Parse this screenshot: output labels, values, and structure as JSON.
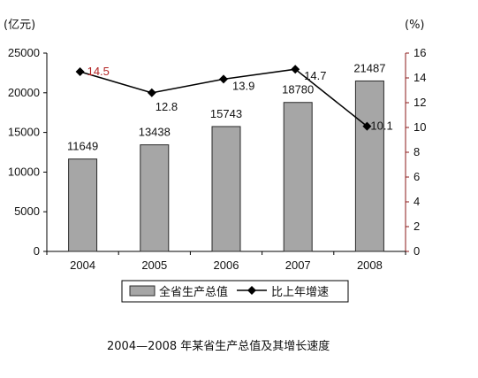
{
  "chart_data": {
    "type": "bar",
    "title": "",
    "caption": "2004—2008 年某省生产总值及其增长速度",
    "categories": [
      "2004",
      "2005",
      "2006",
      "2007",
      "2008"
    ],
    "left_axis": {
      "unit": "(亿元)",
      "ylim": [
        0,
        25000
      ],
      "ticks": [
        "0",
        "5000",
        "10000",
        "15000",
        "20000",
        "25000"
      ]
    },
    "right_axis": {
      "unit": "(%)",
      "ylim": [
        0,
        16
      ],
      "ticks": [
        "0",
        "2",
        "4",
        "6",
        "8",
        "10",
        "12",
        "14",
        "16"
      ]
    },
    "series": [
      {
        "name": "全省生产总值",
        "kind": "bar",
        "axis": "left",
        "values": [
          11649,
          13438,
          15743,
          18780,
          21487
        ],
        "labels": [
          "11649",
          "13438",
          "15743",
          "18780",
          "21487"
        ]
      },
      {
        "name": "比上年增速",
        "kind": "line",
        "axis": "right",
        "values": [
          14.5,
          12.8,
          13.9,
          14.7,
          10.1
        ],
        "labels": [
          "14.5",
          "12.8",
          "13.9",
          "14.7",
          "10.1"
        ]
      }
    ],
    "grid": false,
    "legend_position": "bottom",
    "colors": {
      "bar_fill": "#a6a6a6",
      "bar_stroke": "#2b2b2b",
      "line": "#000000",
      "right_axis": "#8b1a1a",
      "line_label": "#b22222",
      "text": "#111111"
    }
  }
}
